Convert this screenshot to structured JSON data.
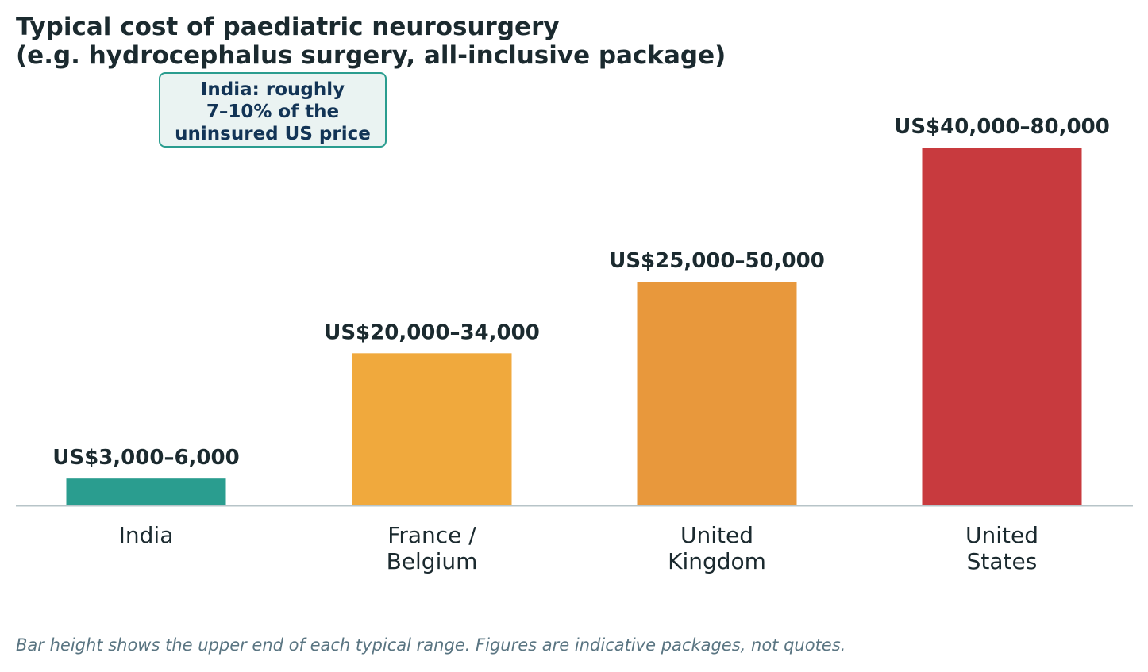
{
  "title_lines": [
    "Typical cost of paediatric neurosurgery",
    "(e.g. hydrocephalus surgery, all-inclusive package)"
  ],
  "callout_lines": [
    "India: roughly",
    "7–10% of the",
    "uninsured US price"
  ],
  "footnote": "Bar height shows the upper end of each typical range. Figures are indicative packages, not quotes.",
  "colors": {
    "india": "#2a9d8f",
    "france_belgium": "#f0a93d",
    "united_kingdom": "#e8983c",
    "united_states": "#c83a3e",
    "baseline": "#b7c4c8",
    "text": "#1b2a2f"
  },
  "chart_data": {
    "type": "bar",
    "categories": [
      [
        "India"
      ],
      [
        "France /",
        "Belgium"
      ],
      [
        "United",
        "Kingdom"
      ],
      [
        "United",
        "States"
      ]
    ],
    "values": [
      6000,
      34000,
      50000,
      80000
    ],
    "data_labels": [
      "US$3,000–6,000",
      "US$20,000–34,000",
      "US$25,000–50,000",
      "US$40,000–80,000"
    ],
    "colors": [
      "#2a9d8f",
      "#f0a93d",
      "#e8983c",
      "#c83a3e"
    ],
    "ylim": [
      0,
      80000
    ],
    "grid": false,
    "legend": "none",
    "xlabel": "",
    "ylabel": ""
  }
}
